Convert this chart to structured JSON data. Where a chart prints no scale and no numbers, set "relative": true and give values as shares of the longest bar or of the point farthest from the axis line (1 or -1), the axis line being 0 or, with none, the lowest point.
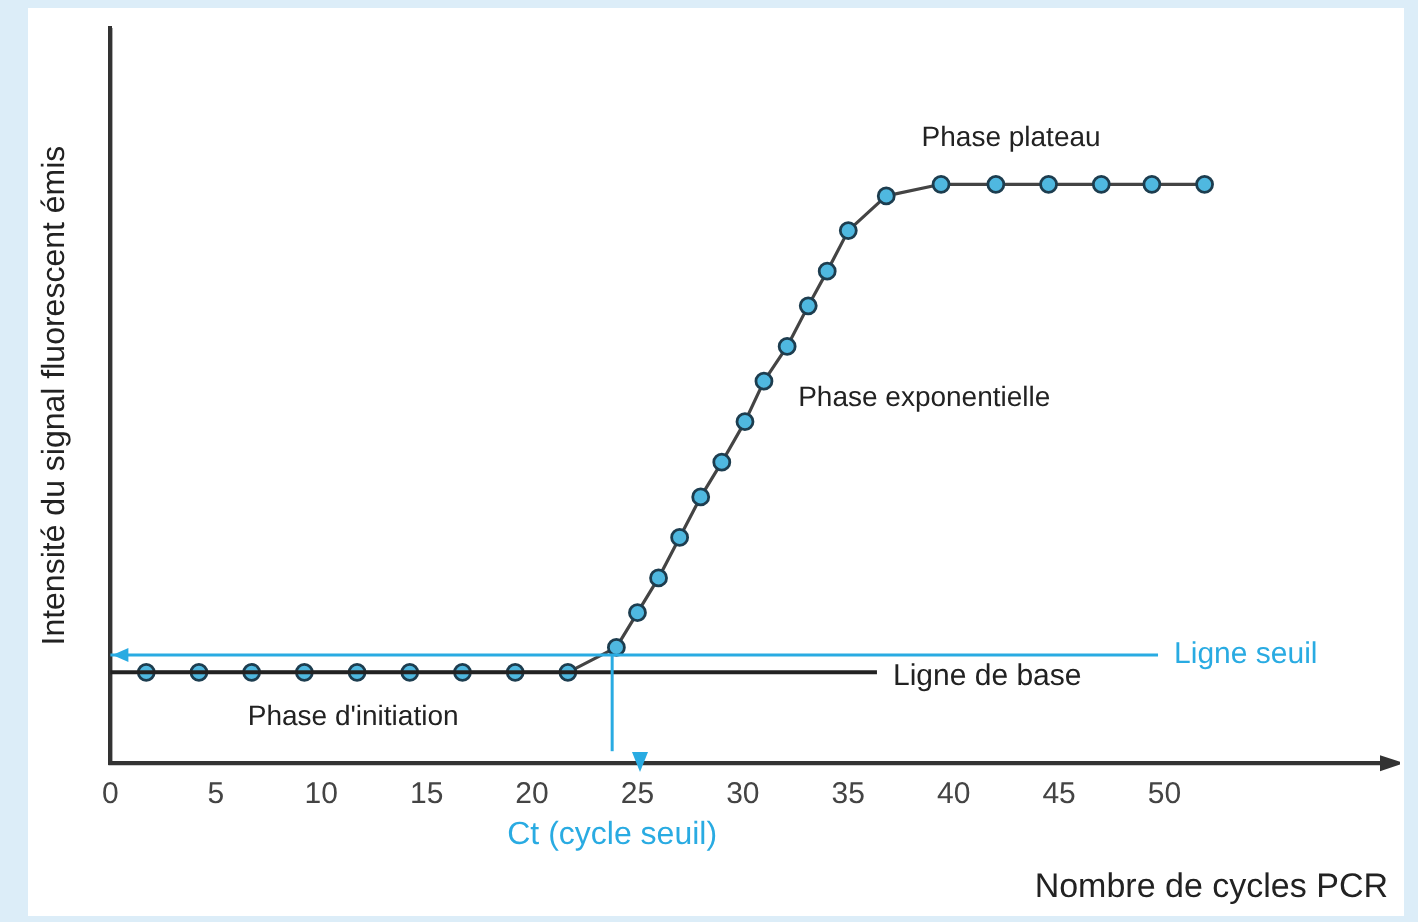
{
  "chart_data": {
    "type": "line",
    "relative": true,
    "xlabel": "Nombre de cycles PCR",
    "ylabel": "Intensité du signal fluorescent émis",
    "x": [
      1.7,
      4.2,
      6.7,
      9.2,
      11.7,
      14.2,
      16.7,
      19.2,
      21.7,
      24.0,
      25.0,
      26.0,
      27.0,
      28.0,
      29.0,
      30.1,
      31.0,
      32.1,
      33.1,
      34.0,
      35.0,
      36.8,
      39.4,
      42.0,
      44.5,
      47.0,
      49.4,
      51.9
    ],
    "series": [
      {
        "color": "#444444",
        "values": [
          0.157,
          0.157,
          0.157,
          0.157,
          0.157,
          0.157,
          0.157,
          0.157,
          0.157,
          0.2,
          0.26,
          0.32,
          0.39,
          0.46,
          0.52,
          0.59,
          0.66,
          0.72,
          0.79,
          0.85,
          0.92,
          0.98,
          1,
          1,
          1,
          1,
          1,
          1
        ]
      }
    ],
    "marker": "circle",
    "xlim": [
      0,
      60.6
    ],
    "xticks": [
      0,
      5,
      10,
      15,
      20,
      25,
      30,
      35,
      40,
      45,
      50
    ],
    "grid": false,
    "legend": false,
    "ref_lines": [
      {
        "axis": "y",
        "value": 0.157,
        "label": "Ligne de base"
      },
      {
        "axis": "y",
        "value": 0.187,
        "label": "Ligne seuil",
        "color": "#29abe2"
      },
      {
        "axis": "x",
        "value": 23.8,
        "label": "Ct (cycle seuil)",
        "color": "#29abe2"
      }
    ],
    "annotations": [
      "Phase plateau",
      "Phase exponentielle",
      "Phase d'initiation"
    ]
  }
}
